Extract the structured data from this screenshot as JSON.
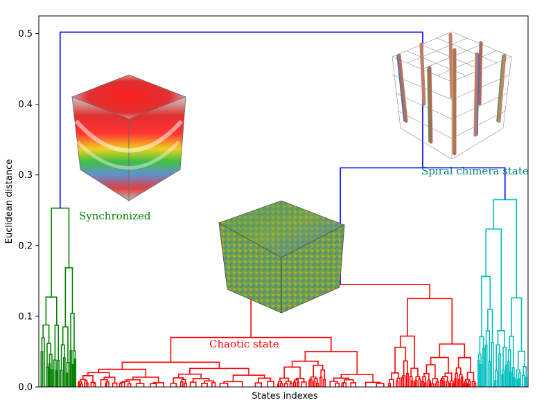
{
  "chart_data": {
    "type": "dendrogram",
    "xlabel": "States indexes",
    "ylabel": "Euclidean distance",
    "ylim": [
      0,
      0.525
    ],
    "yticks": [
      "0.0",
      "0.1",
      "0.2",
      "0.3",
      "0.4",
      "0.5"
    ],
    "ytick_values": [
      0.0,
      0.1,
      0.2,
      0.3,
      0.4,
      0.5
    ],
    "grid": false,
    "clusters": [
      {
        "label": "Synchronized",
        "color": "#008000",
        "merge_height": 0.253
      },
      {
        "label": "Chaotic  state",
        "color": "#ff0000",
        "merge_height": 0.145
      },
      {
        "label": "Spiral  chimera  state",
        "color": "#00bfbf",
        "merge_height": 0.265
      }
    ],
    "merges": [
      {
        "left": "Chaotic  state",
        "right": "Spiral  chimera  state",
        "height": 0.31,
        "color": "#0000ff"
      },
      {
        "left": "Synchronized",
        "right": "Chaotic + Spiral",
        "height": 0.502,
        "color": "#0000ff"
      }
    ],
    "link_color_above_threshold": "#0000ff"
  }
}
